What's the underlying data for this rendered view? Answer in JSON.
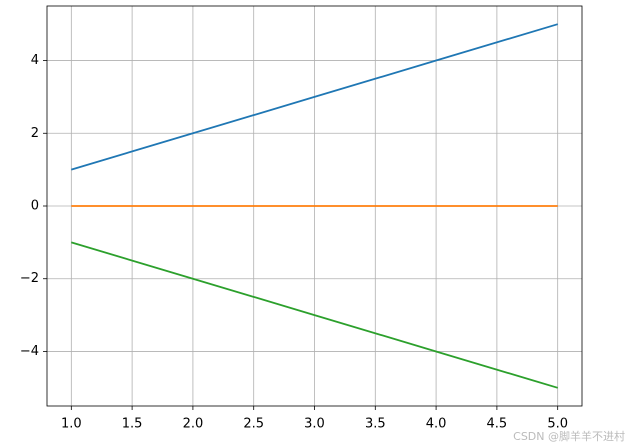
{
  "chart_data": {
    "type": "line",
    "x": [
      1,
      2,
      3,
      4,
      5
    ],
    "series": [
      {
        "color": "#1f77b4",
        "values": [
          1,
          2,
          3,
          4,
          5
        ]
      },
      {
        "color": "#ff7f0e",
        "values": [
          0,
          0,
          0,
          0,
          0
        ]
      },
      {
        "color": "#2ca02c",
        "values": [
          -1,
          -2,
          -3,
          -4,
          -5
        ]
      }
    ],
    "xlim": [
      0.8,
      5.2
    ],
    "xticks": [
      {
        "value": 1,
        "label": "1.0"
      },
      {
        "value": 1.5,
        "label": "1.5"
      },
      {
        "value": 2,
        "label": "2.0"
      },
      {
        "value": 2.5,
        "label": "2.5"
      },
      {
        "value": 3,
        "label": "3.0"
      },
      {
        "value": 3.5,
        "label": "3.5"
      },
      {
        "value": 4,
        "label": "4.0"
      },
      {
        "value": 4.5,
        "label": "4.5"
      },
      {
        "value": 5,
        "label": "5.0"
      }
    ],
    "ylim": [
      -5.5,
      5.5
    ],
    "yticks": [
      {
        "value": -4,
        "label": "−4"
      },
      {
        "value": -2,
        "label": "−2"
      },
      0,
      2,
      4
    ],
    "grid": true,
    "watermark": "CSDN @脚羊羊不进村"
  }
}
